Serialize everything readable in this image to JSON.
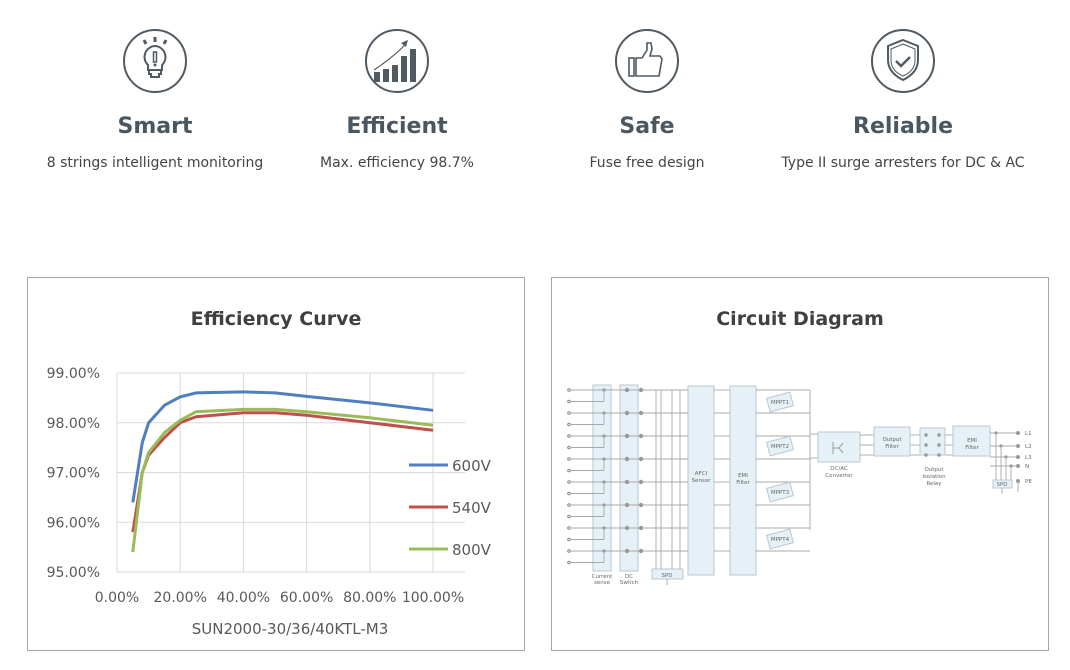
{
  "features": [
    {
      "icon": "lightbulb-icon",
      "title": "Smart",
      "desc": "8 strings intelligent monitoring"
    },
    {
      "icon": "growth-chart-icon",
      "title": "Efficient",
      "desc": "Max. efficiency 98.7%"
    },
    {
      "icon": "thumbs-up-icon",
      "title": "Safe",
      "desc": "Fuse free design"
    },
    {
      "icon": "shield-check-icon",
      "title": "Reliable",
      "desc": "Type II surge arresters for DC & AC"
    }
  ],
  "efficiency_panel": {
    "title": "Efficiency Curve"
  },
  "circuit_panel": {
    "title": "Circuit Diagram",
    "blocks": {
      "current_sense": "Current sense",
      "dc_switch": "DC Switch",
      "spd": "SPD",
      "afci": "AFCI Sensor",
      "emi": "EMI Filter",
      "mppt1": "MPPT1",
      "mppt2": "MPPT2",
      "mppt3": "MPPT3",
      "mppt4": "MPPT4",
      "dcac": "DC/AC Converter",
      "output_filter": "Output Filter",
      "relay": "Output Isolation Relay",
      "emi2": "EMI Filter",
      "spd2": "SPD"
    },
    "outputs": [
      "L1",
      "L2",
      "L3",
      "N",
      "PE"
    ]
  },
  "colors": {
    "icon": "#4f5a62",
    "blue": "#4f7fbf",
    "red": "#c0504d",
    "green": "#9bbb59",
    "diagram_fill": "#e6f0f7",
    "diagram_line": "#a0a0a0"
  },
  "chart_data": {
    "type": "line",
    "title": "",
    "xlabel": "SUN2000-30/36/40KTL-M3",
    "ylabel": "",
    "xlim": [
      0,
      100
    ],
    "ylim": [
      95,
      99
    ],
    "x_ticks": [
      "0.00%",
      "20.00%",
      "40.00%",
      "60.00%",
      "80.00%",
      "100.00%"
    ],
    "y_ticks": [
      "95.00%",
      "96.00%",
      "97.00%",
      "98.00%",
      "99.00%"
    ],
    "grid": true,
    "legend": "right",
    "x": [
      5,
      8,
      10,
      15,
      20,
      25,
      40,
      50,
      60,
      80,
      100
    ],
    "series": [
      {
        "name": "600V",
        "color": "#4f7fbf",
        "values": [
          96.4,
          97.6,
          98.0,
          98.35,
          98.52,
          98.6,
          98.62,
          98.6,
          98.53,
          98.4,
          98.25
        ]
      },
      {
        "name": "540V",
        "color": "#c0504d",
        "values": [
          95.8,
          97.0,
          97.35,
          97.7,
          98.0,
          98.12,
          98.2,
          98.2,
          98.15,
          98.0,
          97.85
        ]
      },
      {
        "name": "800V",
        "color": "#9bbb59",
        "values": [
          95.4,
          97.0,
          97.4,
          97.8,
          98.05,
          98.22,
          98.27,
          98.27,
          98.22,
          98.1,
          97.95
        ]
      }
    ]
  }
}
